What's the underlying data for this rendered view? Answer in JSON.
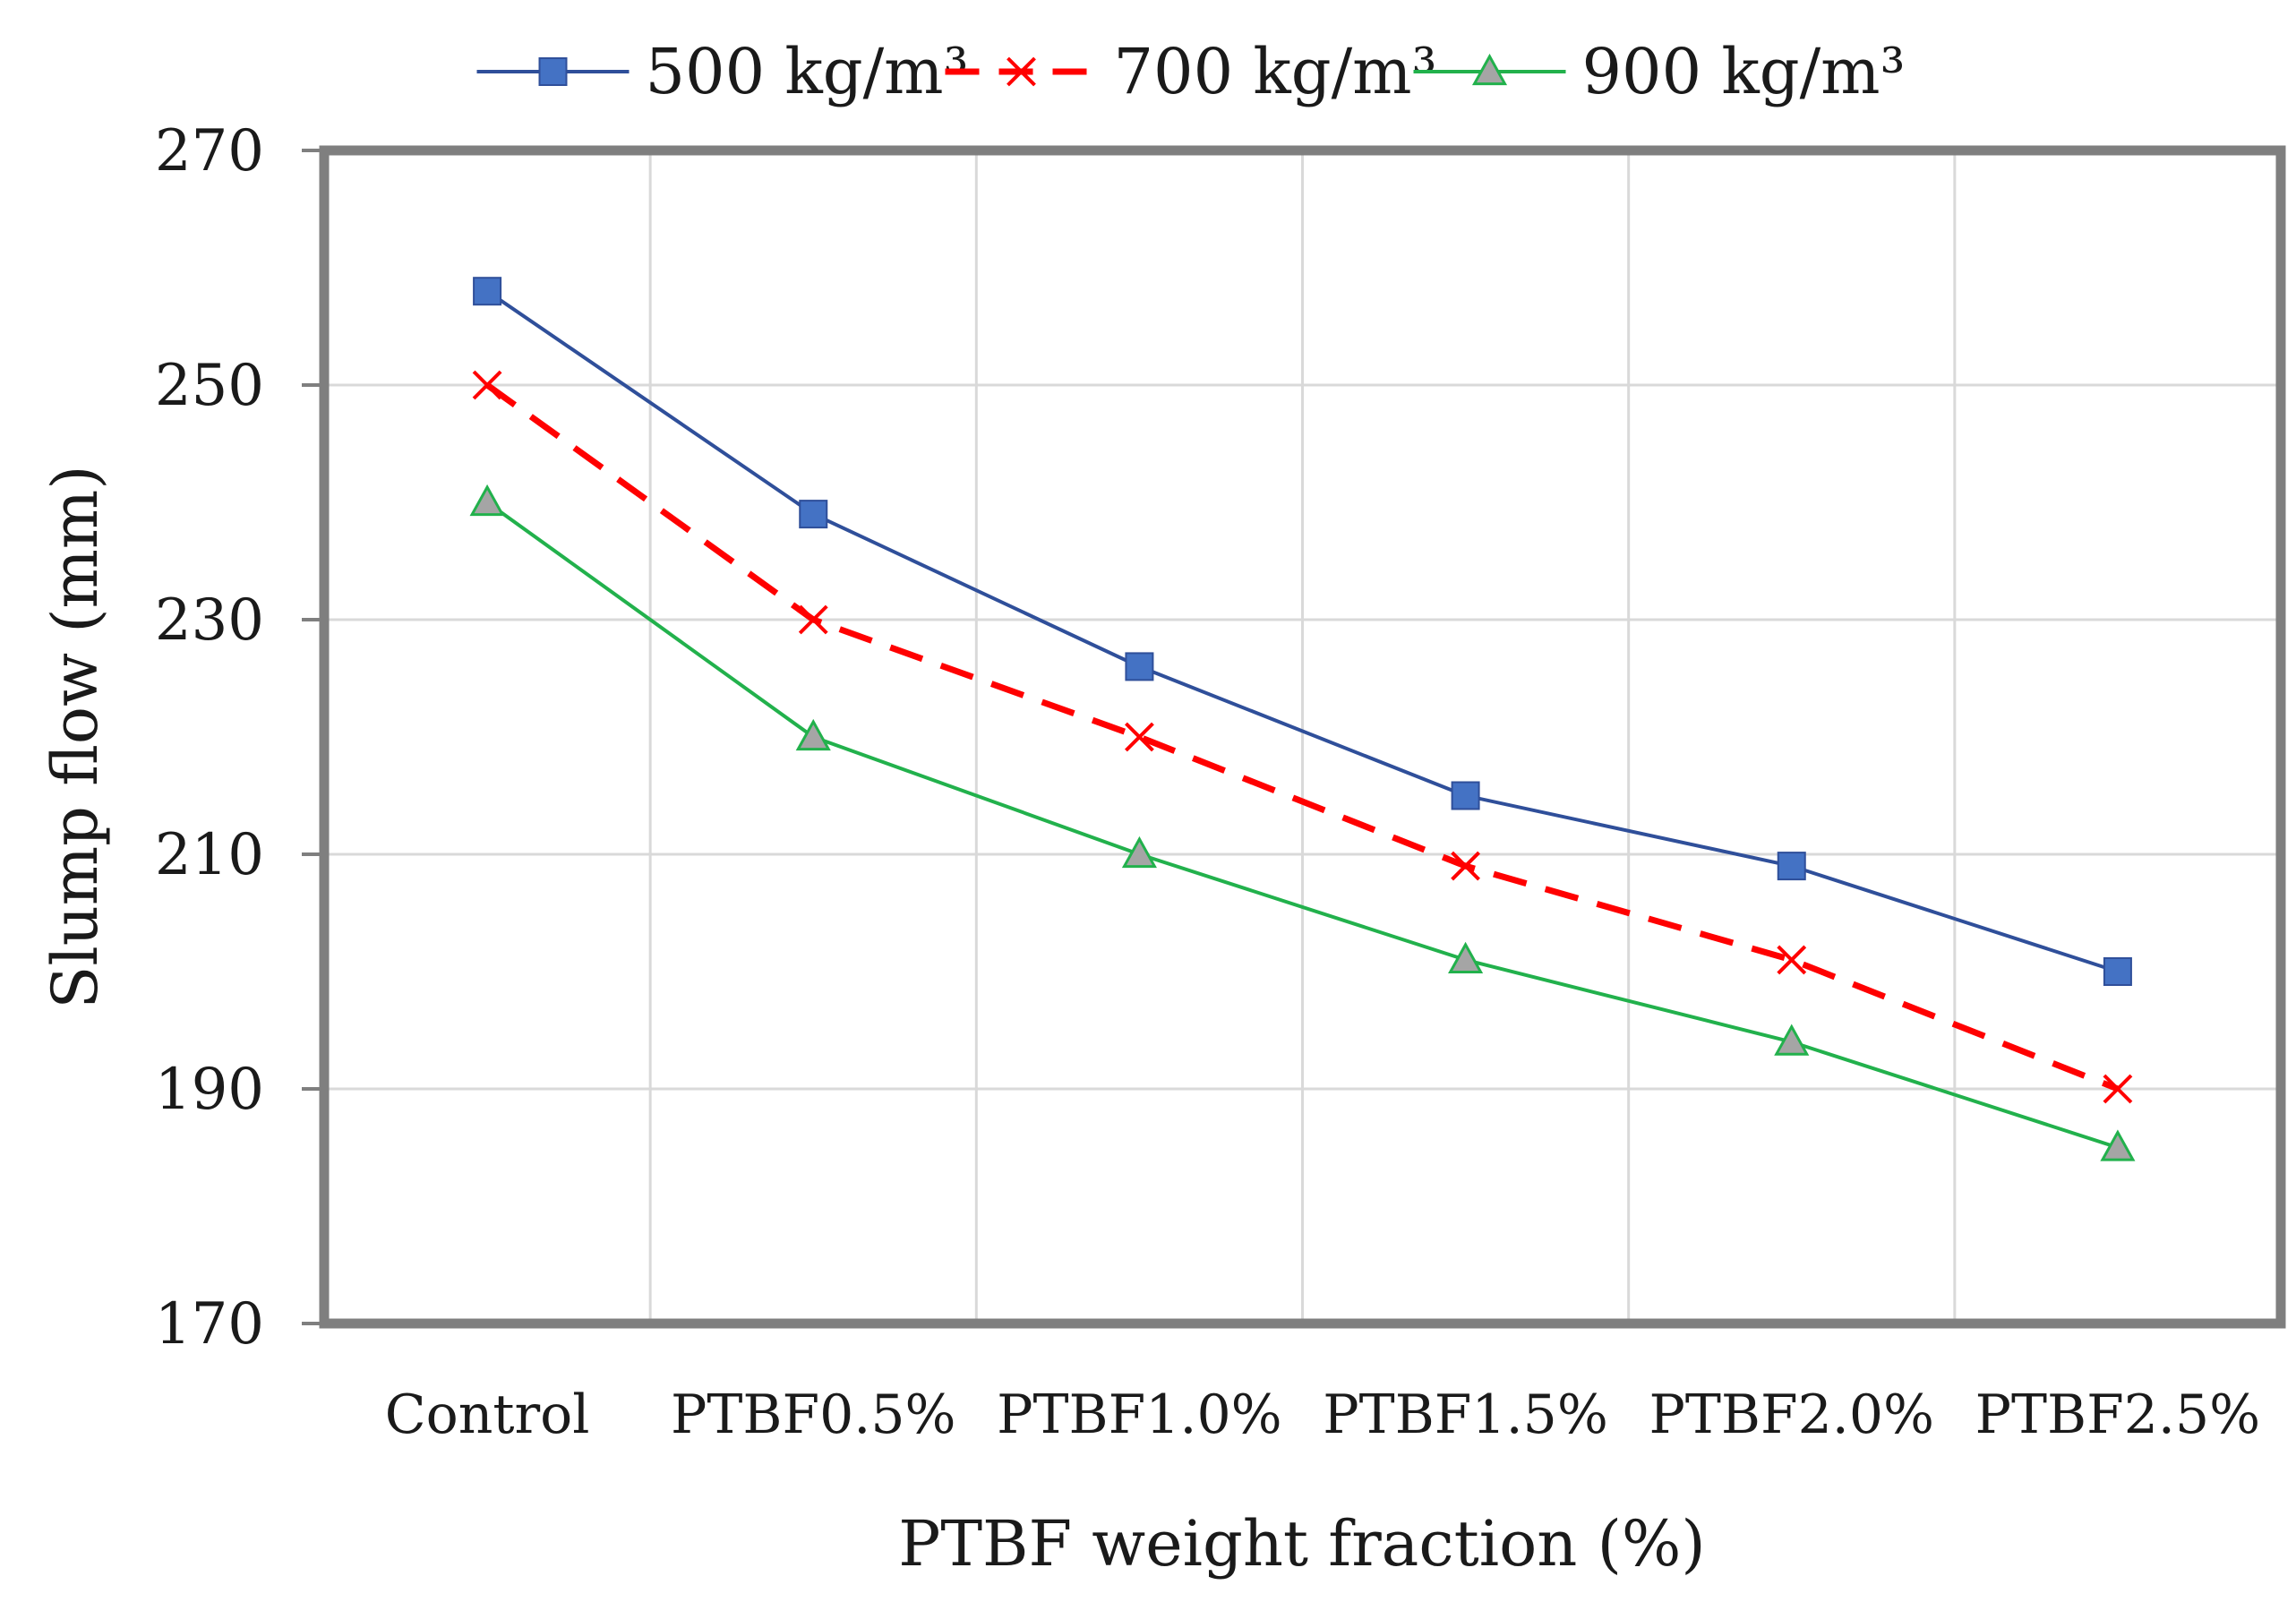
{
  "chart_data": {
    "type": "line",
    "title": "",
    "xlabel": "PTBF weight fraction (%)",
    "ylabel": "Slump flow (mm)",
    "ylim": [
      170,
      270
    ],
    "yticks": [
      170,
      190,
      210,
      230,
      250,
      270
    ],
    "grid": true,
    "legend_position": "top",
    "categories": [
      "Control",
      "PTBF0.5%",
      "PTBF1.0%",
      "PTBF1.5%",
      "PTBF2.0%",
      "PTBF2.5%"
    ],
    "series": [
      {
        "name": "500 kg/m³",
        "values": [
          258,
          239,
          226,
          215,
          209,
          200
        ],
        "color": "#4472C4",
        "line_color": "#2F4F9A",
        "marker": "square",
        "dash": "solid"
      },
      {
        "name": "700 kg/m³",
        "values": [
          250,
          230,
          220,
          209,
          201,
          190
        ],
        "color": "#FF0000",
        "line_color": "#FF0000",
        "marker": "x",
        "dash": "dashed"
      },
      {
        "name": "900 kg/m³",
        "values": [
          240,
          220,
          210,
          201,
          194,
          185
        ],
        "color": "#A5A5A5",
        "line_color": "#22B14C",
        "marker": "triangle",
        "dash": "solid"
      }
    ]
  }
}
